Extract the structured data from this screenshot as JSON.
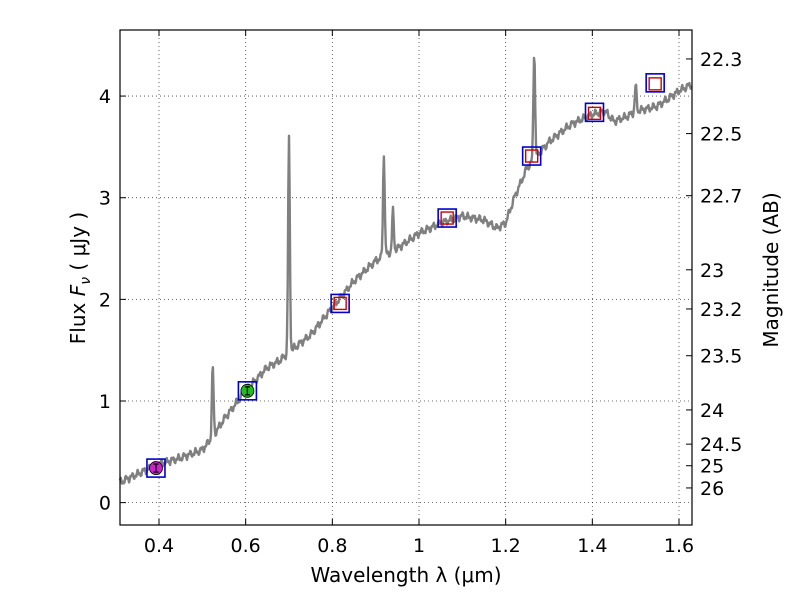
{
  "chart_data": {
    "type": "line",
    "xlabel": "Wavelength  λ (μm)",
    "ylabel_left_text": "Flux  ",
    "ylabel_left_symbol": "F",
    "ylabel_left_sub": "ν",
    "ylabel_left_units": "  ( μJy )",
    "ylabel_right": "Magnitude (AB)",
    "xlim": [
      0.31,
      1.63
    ],
    "ylim": [
      -0.22,
      4.65
    ],
    "grid": true,
    "x_ticks": [
      0.4,
      0.6,
      0.8,
      1.0,
      1.2,
      1.4,
      1.6
    ],
    "x_tick_labels": [
      "0.4",
      "0.6",
      "0.8",
      "1",
      "1.2",
      "1.4",
      "1.6"
    ],
    "y_ticks": [
      0,
      1,
      2,
      3,
      4
    ],
    "y_tick_labels": [
      "0",
      "1",
      "2",
      "3",
      "4"
    ],
    "right_ticks": [
      22.3,
      22.5,
      22.7,
      23,
      23.2,
      23.5,
      24,
      24.5,
      25,
      26
    ],
    "right_tick_labels": [
      "22.3",
      "22.5",
      "22.7",
      "23",
      "23.2",
      "23.5",
      "24",
      "24.5",
      "25",
      "26"
    ],
    "colors": {
      "spectrum": "#808080",
      "box": "#0000cc",
      "model_square": "#cc0000",
      "point_violet": "#cc22cc",
      "point_green": "#22bb22"
    },
    "spectrum": {
      "continuum_x": [
        0.31,
        0.35,
        0.4,
        0.45,
        0.5,
        0.52,
        0.55,
        0.6,
        0.65,
        0.68,
        0.7,
        0.75,
        0.8,
        0.85,
        0.9,
        0.95,
        1.0,
        1.05,
        1.1,
        1.15,
        1.18,
        1.2,
        1.22,
        1.25,
        1.28,
        1.3,
        1.35,
        1.4,
        1.43,
        1.45,
        1.48,
        1.5,
        1.55,
        1.6,
        1.63
      ],
      "continuum_y": [
        0.2,
        0.28,
        0.38,
        0.44,
        0.52,
        0.62,
        0.82,
        1.1,
        1.33,
        1.4,
        1.48,
        1.65,
        1.92,
        2.18,
        2.38,
        2.5,
        2.65,
        2.75,
        2.82,
        2.78,
        2.7,
        2.75,
        3.0,
        3.3,
        3.45,
        3.55,
        3.72,
        3.82,
        3.85,
        3.75,
        3.8,
        3.85,
        3.9,
        4.05,
        4.12
      ],
      "emission_lines": [
        {
          "x": 0.524,
          "peak": 1.33
        },
        {
          "x": 0.7,
          "peak": 3.58
        },
        {
          "x": 0.919,
          "peak": 3.43
        },
        {
          "x": 0.94,
          "peak": 2.87
        },
        {
          "x": 1.266,
          "peak": 4.45
        },
        {
          "x": 1.5,
          "peak": 4.1
        }
      ]
    },
    "photometry": [
      {
        "x": 0.393,
        "box": 0.34,
        "point": 0.34,
        "marker": "violet"
      },
      {
        "x": 0.604,
        "box": 1.1,
        "point": 1.1,
        "marker": "green"
      },
      {
        "x": 0.818,
        "box": 1.96,
        "point": 1.96,
        "marker": "model"
      },
      {
        "x": 1.065,
        "box": 2.8,
        "point": 2.8,
        "marker": "model"
      },
      {
        "x": 1.26,
        "box": 3.41,
        "point": 3.41,
        "marker": "model"
      },
      {
        "x": 1.405,
        "box": 3.84,
        "point": 3.83,
        "marker": "model"
      },
      {
        "x": 1.545,
        "box": 4.13,
        "point": 4.12,
        "marker": "model"
      }
    ]
  }
}
